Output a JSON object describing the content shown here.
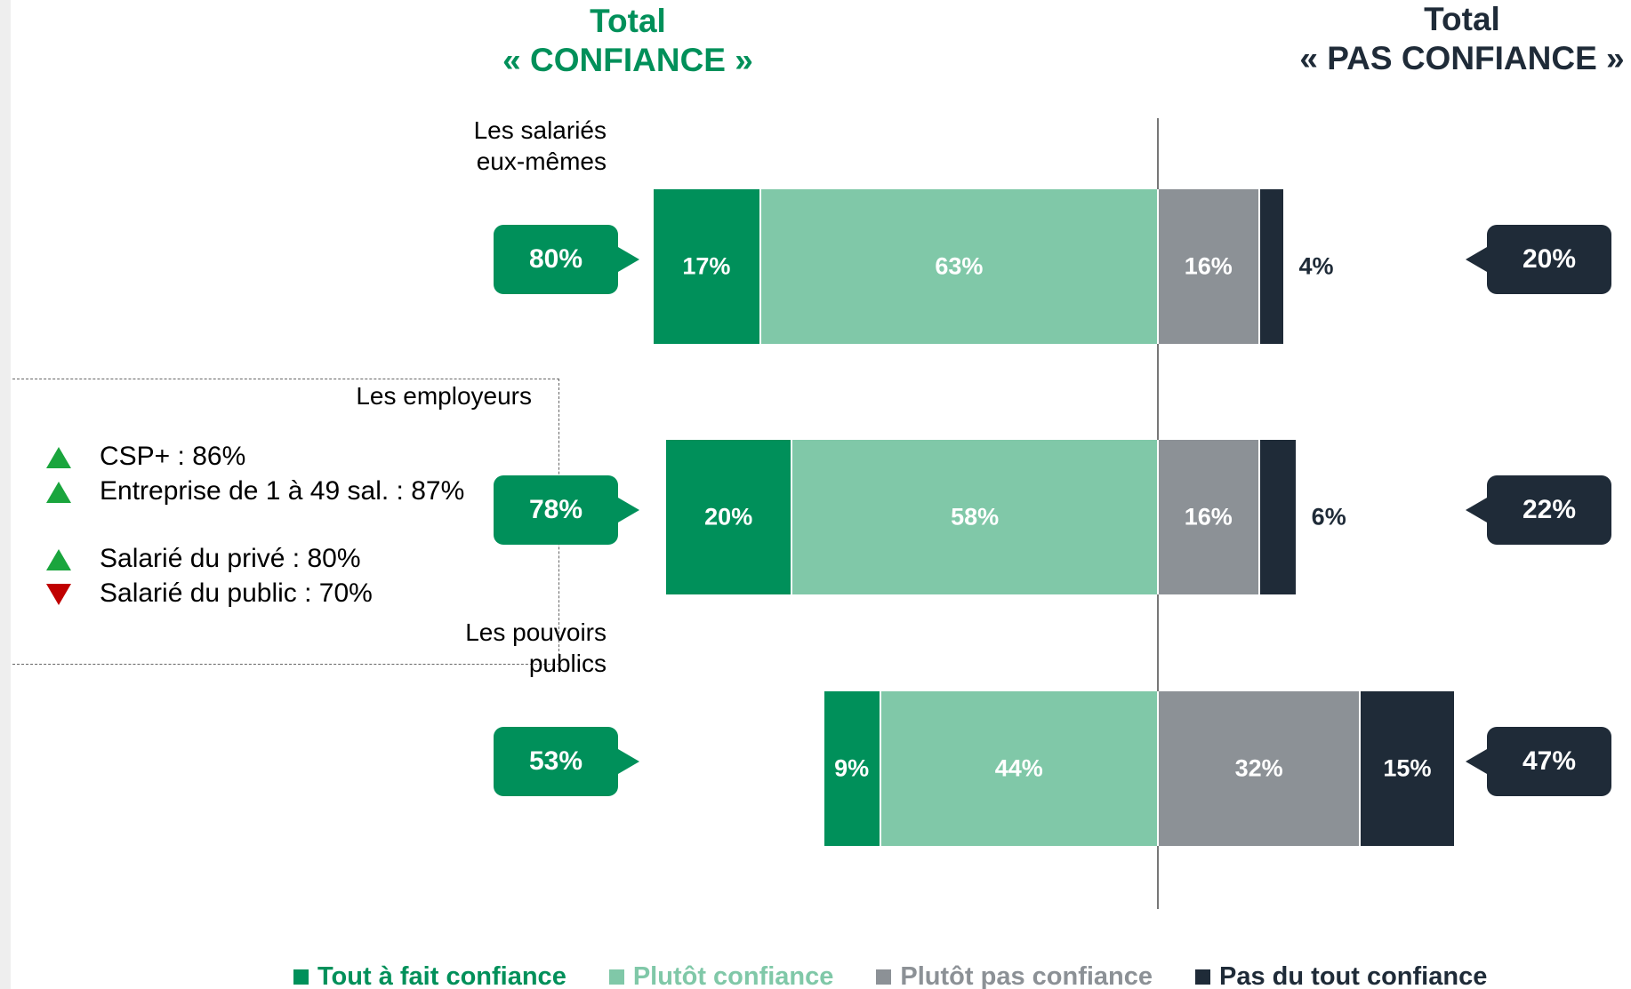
{
  "chart_data": {
    "type": "diverging_bar",
    "left_header": [
      "Total",
      "« CONFIANCE »"
    ],
    "right_header": [
      "Total",
      "« PAS CONFIANCE »"
    ],
    "categories": [
      "Les salariés eux-mêmes",
      "Les employeurs",
      "Les pouvoirs publics"
    ],
    "series": [
      {
        "name": "Tout à fait confiance",
        "color": "#00905a",
        "side": "left",
        "values": [
          17,
          20,
          9
        ],
        "value_labels": [
          "17%",
          "20%",
          "9%"
        ]
      },
      {
        "name": "Plutôt confiance",
        "color": "#80c8a8",
        "side": "left",
        "values": [
          63,
          58,
          44
        ],
        "value_labels": [
          "63%",
          "58%",
          "44%"
        ]
      },
      {
        "name": "Plutôt pas confiance",
        "color": "#8c9196",
        "side": "right",
        "values": [
          16,
          16,
          32
        ],
        "value_labels": [
          "16%",
          "16%",
          "32%"
        ]
      },
      {
        "name": "Pas du tout confiance",
        "color": "#1f2b38",
        "side": "right",
        "values": [
          4,
          6,
          15
        ],
        "value_labels": [
          "4%",
          "6%",
          "15%"
        ]
      }
    ],
    "totals_left": {
      "color": "#00905a",
      "values": [
        80,
        78,
        53
      ],
      "value_labels": [
        "80%",
        "78%",
        "53%"
      ]
    },
    "totals_right": {
      "color": "#1f2b38",
      "values": [
        20,
        22,
        47
      ],
      "value_labels": [
        "20%",
        "22%",
        "47%"
      ]
    },
    "annotation": {
      "category": 1,
      "groups": [
        [
          {
            "text": "CSP+ : 86%",
            "direction": "up"
          },
          {
            "text": "Entreprise de 1 à 49 sal. : 87%",
            "direction": "up"
          }
        ],
        [
          {
            "text": "Salarié du privé : 80%",
            "direction": "up"
          },
          {
            "text": "Salarié du public : 70%",
            "direction": "down"
          }
        ]
      ]
    }
  }
}
